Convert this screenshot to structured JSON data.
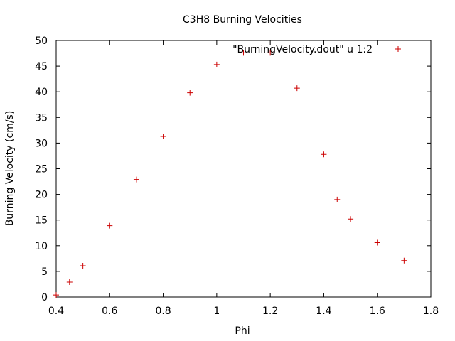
{
  "chart_data": {
    "type": "scatter",
    "title": "C3H8 Burning Velocities",
    "xlabel": "Phi",
    "ylabel": "Burning Velocity (cm/s)",
    "xlim": [
      0.4,
      1.8
    ],
    "ylim": [
      0,
      50
    ],
    "xticks": [
      "0.4",
      "0.6",
      "0.8",
      "1",
      "1.2",
      "1.4",
      "1.6",
      "1.8"
    ],
    "yticks": [
      "0",
      "5",
      "10",
      "15",
      "20",
      "25",
      "30",
      "35",
      "40",
      "45",
      "50"
    ],
    "grid": false,
    "legend_position": "top-right",
    "marker": "+",
    "color": "#cc0000",
    "series": [
      {
        "name": "\"BurningVelocity.dout\" u 1:2",
        "x": [
          0.4,
          0.45,
          0.5,
          0.6,
          0.7,
          0.8,
          0.9,
          1.0,
          1.1,
          1.2,
          1.3,
          1.4,
          1.45,
          1.5,
          1.6,
          1.7
        ],
        "y": [
          0.4,
          2.9,
          6.1,
          13.9,
          22.9,
          31.3,
          39.8,
          45.3,
          47.6,
          47.6,
          40.7,
          27.8,
          19.0,
          15.2,
          10.6,
          7.1
        ]
      }
    ]
  }
}
